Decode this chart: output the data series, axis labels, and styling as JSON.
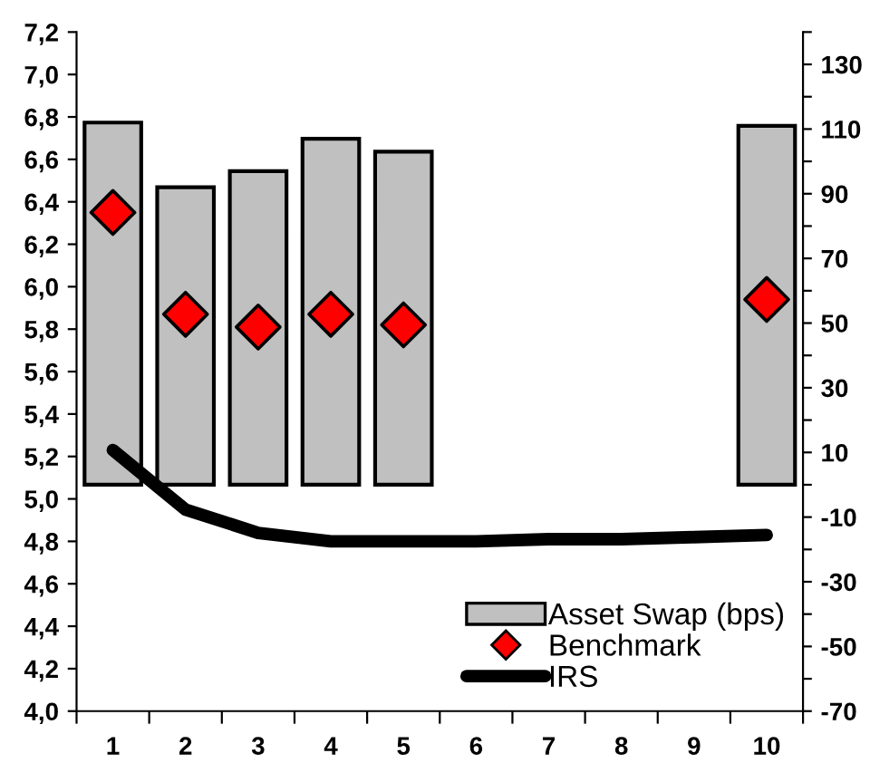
{
  "chart_data": {
    "type": "bar",
    "categories": [
      "1",
      "2",
      "3",
      "4",
      "5",
      "6",
      "7",
      "8",
      "9",
      "10"
    ],
    "series": [
      {
        "name": "Asset Swap (bps)",
        "axis": "y2",
        "color": "#c0c0c0",
        "values": [
          112,
          92,
          97,
          107,
          103,
          null,
          null,
          null,
          null,
          111
        ]
      },
      {
        "name": "Benchmark",
        "type": "scatter",
        "marker": "diamond",
        "color": "#ff0000",
        "values": [
          6.35,
          5.87,
          5.81,
          5.87,
          5.82,
          null,
          null,
          null,
          null,
          5.94
        ]
      },
      {
        "name": "IRS",
        "type": "line",
        "line_style": "solid",
        "color": "#000000",
        "values": [
          5.23,
          4.95,
          4.84,
          4.8,
          4.8,
          4.8,
          4.81,
          4.81,
          4.82,
          4.83
        ]
      }
    ],
    "ylim": [
      4.0,
      7.2
    ],
    "yticks": [
      {
        "value": 4.0,
        "label": "4,0"
      },
      {
        "value": 4.2,
        "label": "4,2"
      },
      {
        "value": 4.4,
        "label": "4,4"
      },
      {
        "value": 4.6,
        "label": "4,6"
      },
      {
        "value": 4.8,
        "label": "4,8"
      },
      {
        "value": 5.0,
        "label": "5,0"
      },
      {
        "value": 5.2,
        "label": "5,2"
      },
      {
        "value": 5.4,
        "label": "5,4"
      },
      {
        "value": 5.6,
        "label": "5,6"
      },
      {
        "value": 5.8,
        "label": "5,8"
      },
      {
        "value": 6.0,
        "label": "6,0"
      },
      {
        "value": 6.2,
        "label": "6,2"
      },
      {
        "value": 6.4,
        "label": "6,4"
      },
      {
        "value": 6.6,
        "label": "6,6"
      },
      {
        "value": 6.8,
        "label": "6,8"
      },
      {
        "value": 7.0,
        "label": "7,0"
      },
      {
        "value": 7.2,
        "label": "7,2"
      }
    ],
    "y2lim": [
      -70,
      140
    ],
    "y2ticks": [
      -70,
      {
        "value": -60,
        "label": null
      },
      -50,
      {
        "value": -40,
        "label": null
      },
      -30,
      {
        "value": -20,
        "label": null
      },
      -10,
      {
        "value": 0,
        "label": null
      },
      10,
      {
        "value": 20,
        "label": null
      },
      30,
      {
        "value": 40,
        "label": null
      },
      50,
      {
        "value": 60,
        "label": null
      },
      70,
      {
        "value": 80,
        "label": null
      },
      90,
      {
        "value": 100,
        "label": null
      },
      110,
      {
        "value": 120,
        "label": null
      },
      130,
      {
        "value": 140,
        "label": null
      }
    ],
    "grid": false,
    "legend": "bottom right"
  }
}
